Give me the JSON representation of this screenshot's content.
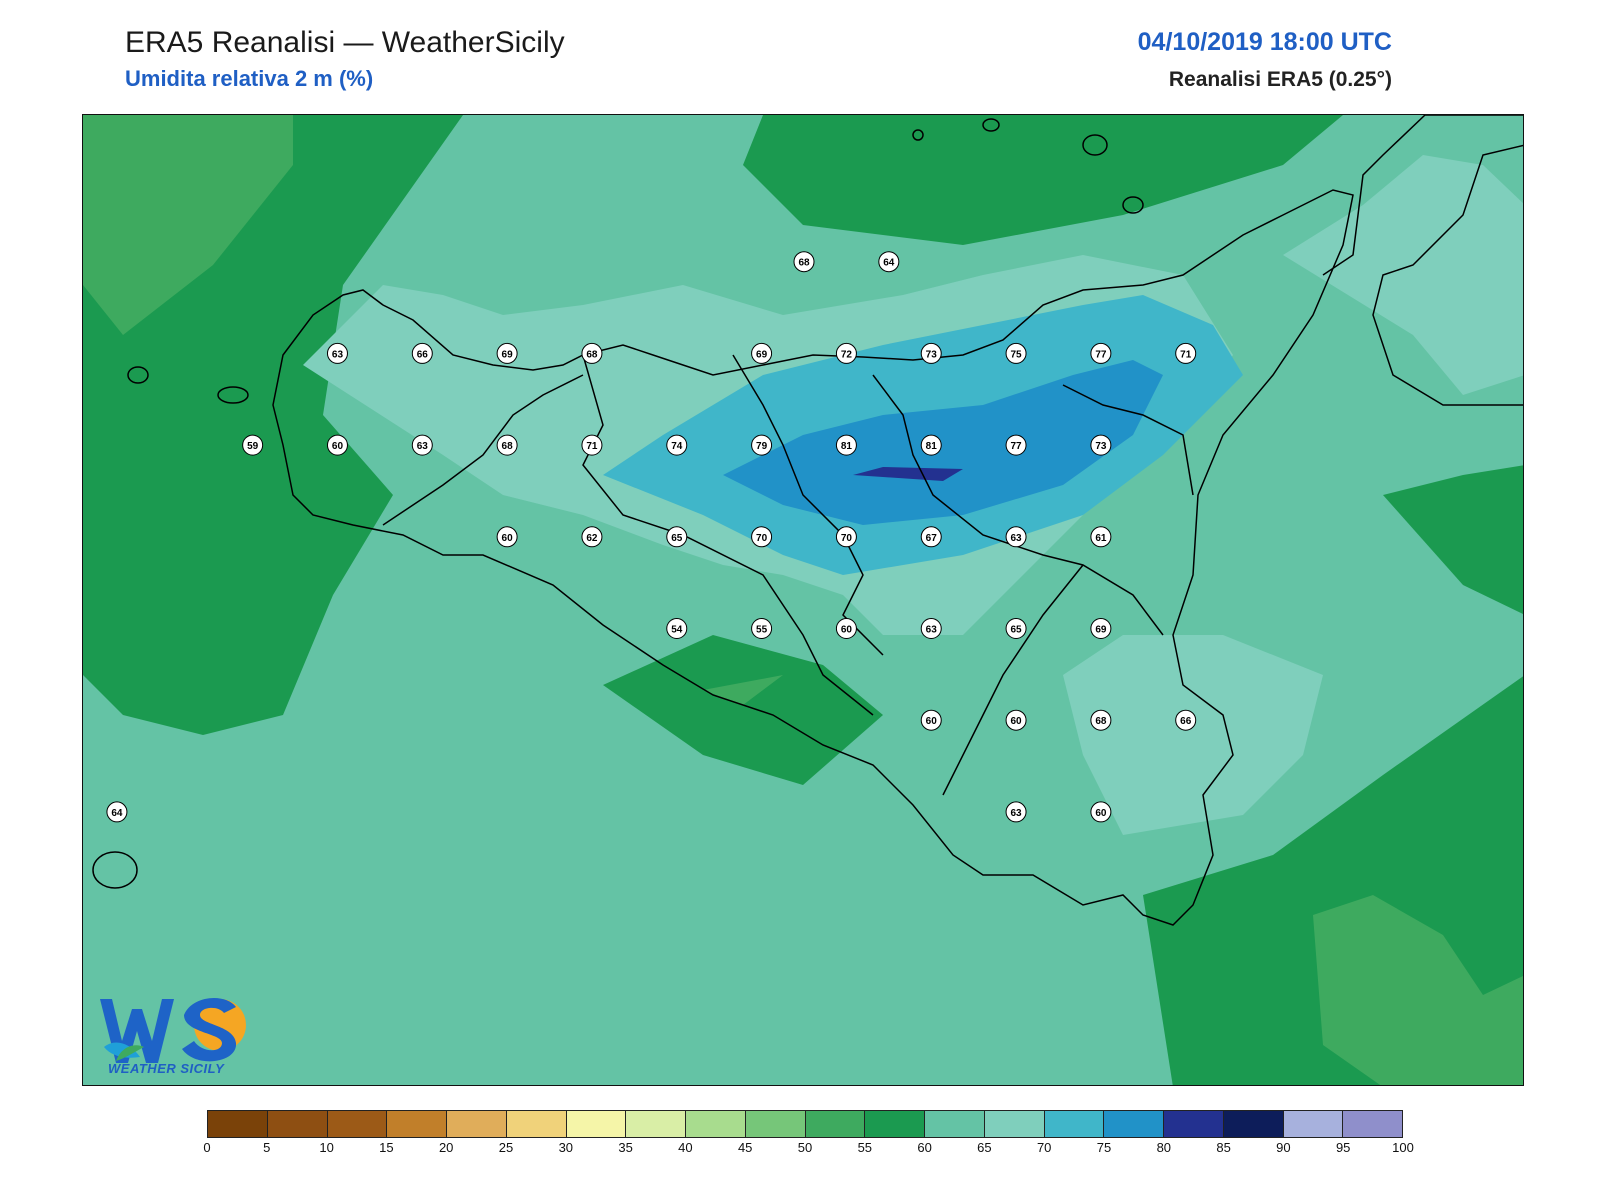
{
  "header": {
    "title": "ERA5 Reanalisi — WeatherSicily",
    "subtitle": "Umidita relativa 2 m (%)",
    "datetime": "04/10/2019 18:00 UTC",
    "model": "Reanalisi ERA5 (0.25°)"
  },
  "logo": {
    "text": "WEATHER SICILY",
    "letters": "WS"
  },
  "colors": {
    "c50_55": "#3eaa5f",
    "c55_60": "#1b9a50",
    "c60_65": "#64c3a5",
    "c65_70": "#7fcfbc",
    "c70_75": "#40b6c9",
    "c75_80": "#2192c8",
    "c80_85": "#233190",
    "coast": "#000000"
  },
  "colorbar": {
    "ticks": [
      "0",
      "5",
      "10",
      "15",
      "20",
      "25",
      "30",
      "35",
      "40",
      "45",
      "50",
      "55",
      "60",
      "65",
      "70",
      "75",
      "80",
      "85",
      "90",
      "95",
      "100"
    ],
    "colors": [
      "#7a4209",
      "#8e4f12",
      "#9c5a17",
      "#c17f2a",
      "#e0ad5a",
      "#f0d27a",
      "#f5f5a8",
      "#d9eea6",
      "#a8dc8e",
      "#76c679",
      "#3eaa5f",
      "#1b9a50",
      "#64c3a5",
      "#7fcfbc",
      "#40b6c9",
      "#2192c8",
      "#233190",
      "#0d1d5a",
      "#a7b1dd",
      "#8f8fcb"
    ]
  },
  "stations": [
    {
      "value": "68",
      "lon": 15.25,
      "lat": 38.25
    },
    {
      "value": "64",
      "lon": 15.75,
      "lat": 38.25
    },
    {
      "value": "63",
      "lon": 12.5,
      "lat": 38.0
    },
    {
      "value": "66",
      "lon": 13.0,
      "lat": 38.0
    },
    {
      "value": "69",
      "lon": 13.5,
      "lat": 38.0
    },
    {
      "value": "68",
      "lon": 14.0,
      "lat": 38.0
    },
    {
      "value": "69",
      "lon": 15.0,
      "lat": 38.0
    },
    {
      "value": "72",
      "lon": 15.5,
      "lat": 38.0
    },
    {
      "value": "73",
      "lon": 16.0,
      "lat": 38.0
    },
    {
      "value": "75",
      "lon": 16.5,
      "lat": 38.0
    },
    {
      "value": "77",
      "lon": 17.0,
      "lat": 38.0
    },
    {
      "value": "71",
      "lon": 17.5,
      "lat": 38.0
    },
    {
      "value": "59",
      "lon": 12.0,
      "lat": 37.75
    },
    {
      "value": "60",
      "lon": 12.5,
      "lat": 37.75
    },
    {
      "value": "63",
      "lon": 13.0,
      "lat": 37.75
    },
    {
      "value": "68",
      "lon": 13.5,
      "lat": 37.75
    },
    {
      "value": "71",
      "lon": 14.0,
      "lat": 37.75
    },
    {
      "value": "74",
      "lon": 14.5,
      "lat": 37.75
    },
    {
      "value": "79",
      "lon": 15.0,
      "lat": 37.75
    },
    {
      "value": "81",
      "lon": 15.5,
      "lat": 37.75
    },
    {
      "value": "81",
      "lon": 16.0,
      "lat": 37.75
    },
    {
      "value": "77",
      "lon": 16.5,
      "lat": 37.75
    },
    {
      "value": "73",
      "lon": 17.0,
      "lat": 37.75
    },
    {
      "value": "60",
      "lon": 13.5,
      "lat": 37.5
    },
    {
      "value": "62",
      "lon": 14.0,
      "lat": 37.5
    },
    {
      "value": "65",
      "lon": 14.5,
      "lat": 37.5
    },
    {
      "value": "70",
      "lon": 15.0,
      "lat": 37.5
    },
    {
      "value": "70",
      "lon": 15.5,
      "lat": 37.5
    },
    {
      "value": "67",
      "lon": 16.0,
      "lat": 37.5
    },
    {
      "value": "63",
      "lon": 16.5,
      "lat": 37.5
    },
    {
      "value": "61",
      "lon": 17.0,
      "lat": 37.5
    },
    {
      "value": "54",
      "lon": 14.5,
      "lat": 37.25
    },
    {
      "value": "55",
      "lon": 15.0,
      "lat": 37.25
    },
    {
      "value": "60",
      "lon": 15.5,
      "lat": 37.25
    },
    {
      "value": "63",
      "lon": 16.0,
      "lat": 37.25
    },
    {
      "value": "65",
      "lon": 16.5,
      "lat": 37.25
    },
    {
      "value": "69",
      "lon": 17.0,
      "lat": 37.25
    },
    {
      "value": "60",
      "lon": 16.0,
      "lat": 37.0
    },
    {
      "value": "60",
      "lon": 16.5,
      "lat": 37.0
    },
    {
      "value": "68",
      "lon": 17.0,
      "lat": 37.0
    },
    {
      "value": "66",
      "lon": 17.5,
      "lat": 37.0
    },
    {
      "value": "64",
      "lon": 11.2,
      "lat": 36.75
    },
    {
      "value": "63",
      "lon": 16.5,
      "lat": 36.75
    },
    {
      "value": "60",
      "lon": 17.0,
      "lat": 36.75
    }
  ]
}
